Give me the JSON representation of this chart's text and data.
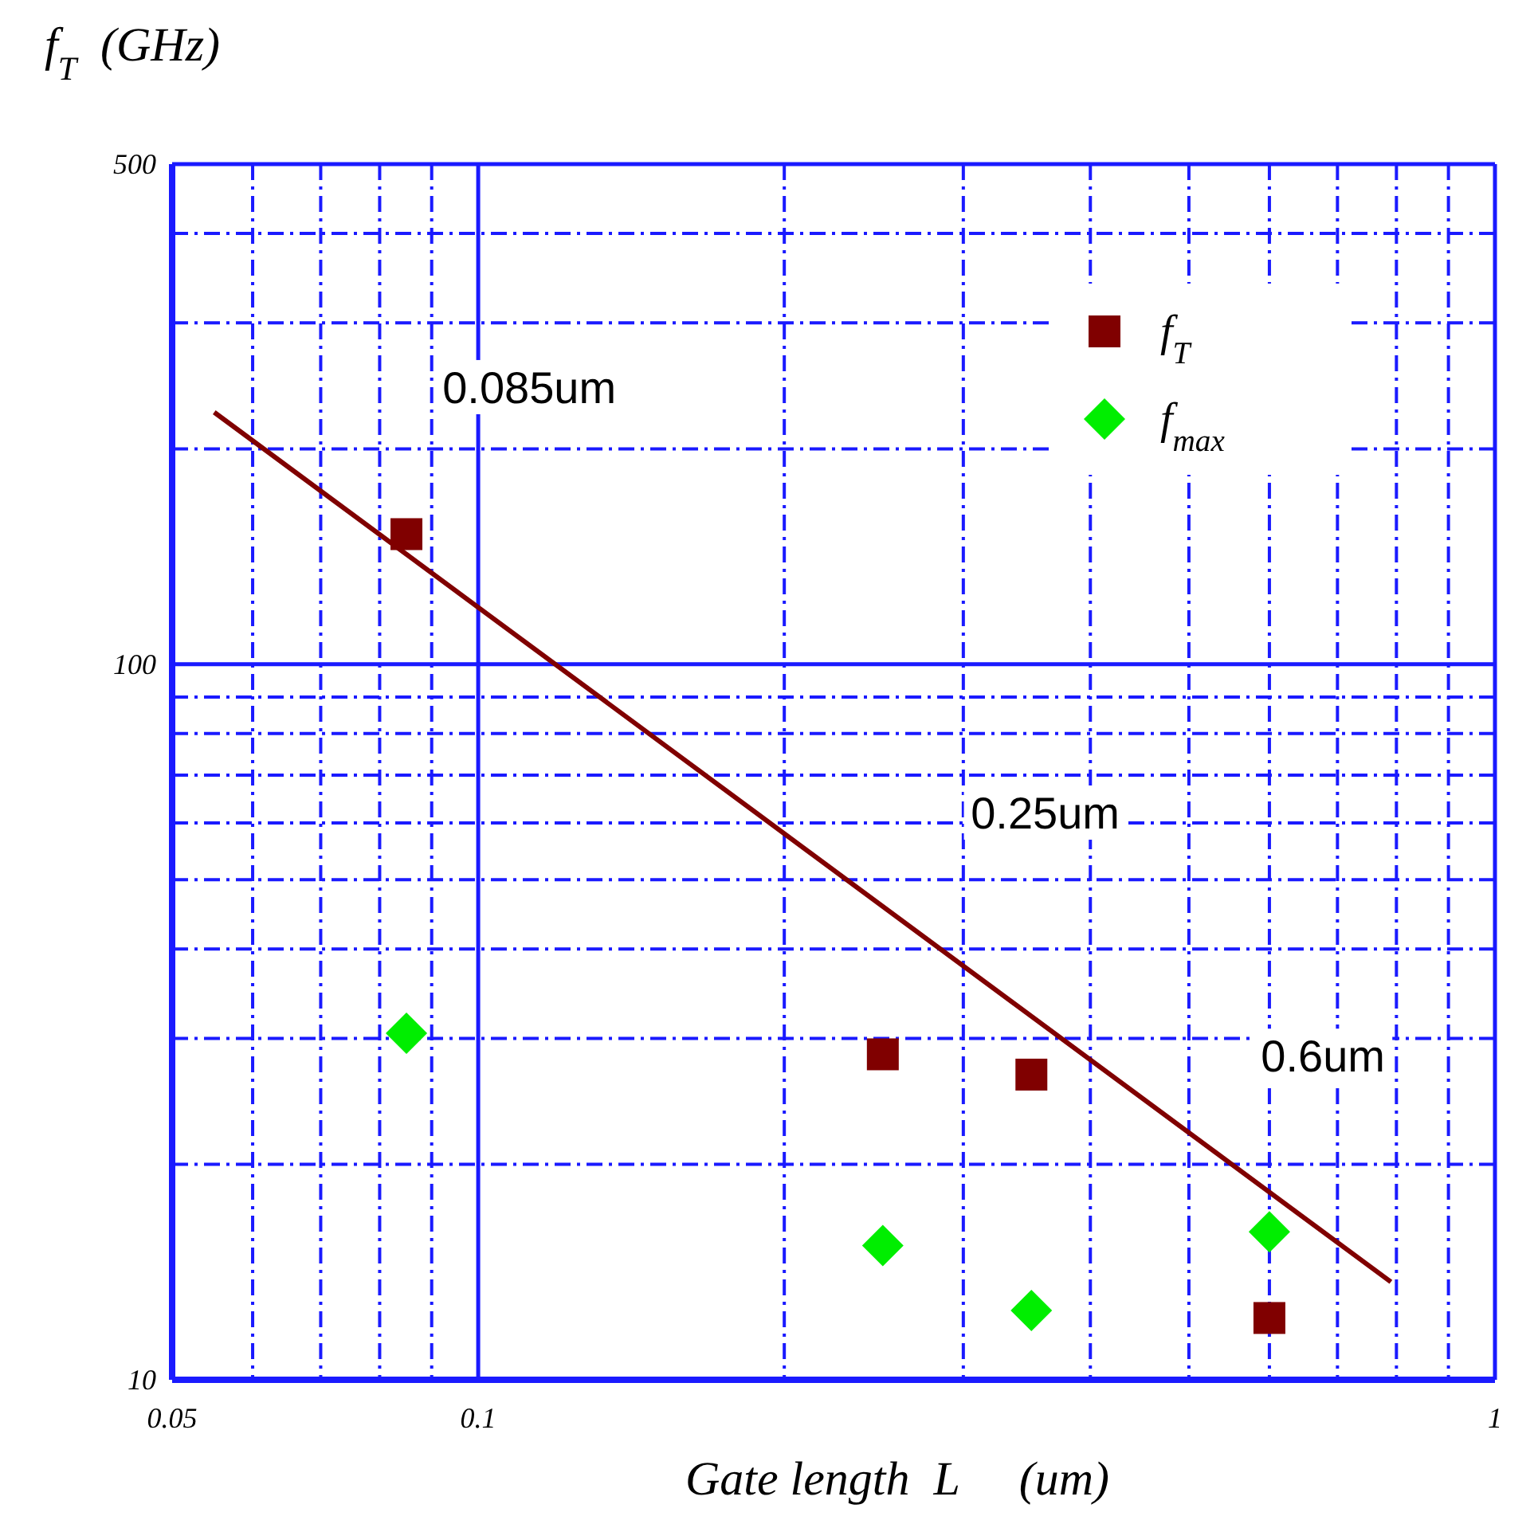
{
  "chart_data": {
    "type": "scatter",
    "xlabel": "Gate length  L     (um)",
    "ylabel": "f$_{T}$  (GHz)",
    "log": "xy",
    "grid": true,
    "legend": "top right",
    "xlim": [
      0.05,
      1
    ],
    "xticks": [
      0.05,
      {
        "value": 0.06,
        "label": null
      },
      {
        "value": 0.07,
        "label": null
      },
      {
        "value": 0.08,
        "label": null
      },
      {
        "value": 0.09,
        "label": null
      },
      0.1,
      {
        "value": 0.2,
        "label": null
      },
      {
        "value": 0.3,
        "label": null
      },
      {
        "value": 0.4,
        "label": null
      },
      {
        "value": 0.5,
        "label": null
      },
      {
        "value": 0.6,
        "label": null
      },
      {
        "value": 0.7,
        "label": null
      },
      {
        "value": 0.8,
        "label": null
      },
      {
        "value": 0.9,
        "label": null
      },
      1
    ],
    "ylim": [
      10,
      500
    ],
    "yticks": [
      10,
      {
        "value": 20,
        "label": null
      },
      {
        "value": 30,
        "label": null
      },
      {
        "value": 40,
        "label": null
      },
      {
        "value": 50,
        "label": null
      },
      {
        "value": 60,
        "label": null
      },
      {
        "value": 70,
        "label": null
      },
      {
        "value": 80,
        "label": null
      },
      {
        "value": 90,
        "label": null
      },
      100,
      {
        "value": 200,
        "label": null
      },
      {
        "value": 300,
        "label": null
      },
      {
        "value": 400,
        "label": null
      },
      500
    ],
    "series": [
      {
        "name": "f$_{T}$",
        "marker": "square",
        "color": "#800000",
        "x": [
          0.085,
          0.25,
          0.35,
          0.6
        ],
        "values": [
          152,
          28.5,
          26.7,
          12.2
        ]
      },
      {
        "name": "f$_{max}$",
        "marker": "diamond",
        "color": "#00ee00",
        "x": [
          0.085,
          0.25,
          0.35,
          0.6
        ],
        "values": [
          30.5,
          15.4,
          12.5,
          16.1
        ]
      },
      {
        "type": "line",
        "marker": "none",
        "color": "#800000",
        "x": [
          0.055,
          0.79
        ],
        "values": [
          225,
          13.7
        ]
      }
    ],
    "annotations": [
      "0.085um",
      "0.25um",
      "0.6um"
    ]
  }
}
